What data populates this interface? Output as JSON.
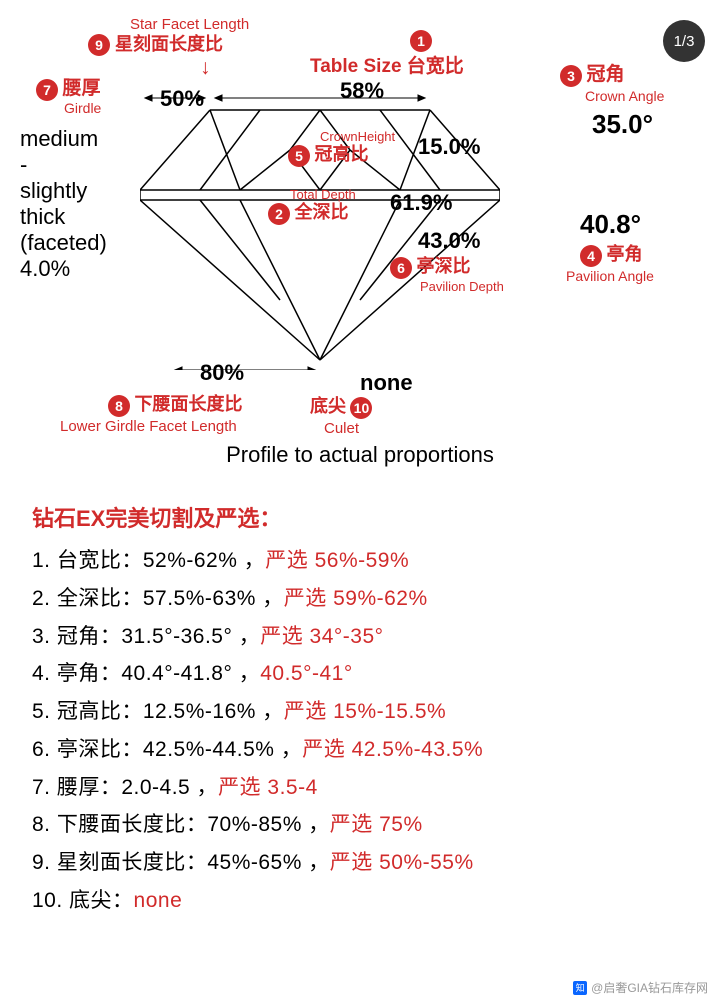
{
  "page_counter": "1/3",
  "colors": {
    "accent": "#d12b2b",
    "text": "#000000",
    "badge_bg": "#333333",
    "zhihu": "#0a66ff"
  },
  "diagram": {
    "caption": "Profile to actual proportions",
    "measurements": {
      "star_pct": "50%",
      "table_pct": "58%",
      "crown_angle": "35.0°",
      "crown_height": "15.0%",
      "total_depth": "61.9%",
      "pavilion_depth": "43.0%",
      "pavilion_angle": "40.8°",
      "lower_girdle_pct": "80%",
      "culet": "none",
      "girdle_pct": "4.0%"
    },
    "girdle_text_a": "medium",
    "girdle_text_b": "-",
    "girdle_text_c": "slightly",
    "girdle_text_d": "thick",
    "girdle_text_e": "(faceted)",
    "labels": {
      "l1": {
        "num": "1",
        "cn": "台宽比",
        "en": "Table Size"
      },
      "l2": {
        "num": "2",
        "cn": "全深比",
        "en": "Total Depth"
      },
      "l3": {
        "num": "3",
        "cn": "冠角",
        "en": "Crown Angle"
      },
      "l4": {
        "num": "4",
        "cn": "亭角",
        "en": "Pavilion Angle"
      },
      "l5": {
        "num": "5",
        "cn": "冠高比",
        "en": "CrownHeight"
      },
      "l6": {
        "num": "6",
        "cn": "亭深比",
        "en": "Pavilion Depth"
      },
      "l7": {
        "num": "7",
        "cn": "腰厚",
        "en": "Girdle"
      },
      "l8": {
        "num": "8",
        "cn": "下腰面长度比",
        "en": "Lower Girdle Facet Length"
      },
      "l9": {
        "num": "9",
        "cn": "星刻面长度比",
        "en": "Star Facet Length"
      },
      "l10": {
        "num": "10",
        "cn": "底尖",
        "en": "Culet"
      }
    }
  },
  "list": {
    "title": "钻石EX完美切割及严选：",
    "rows": [
      {
        "n": "1",
        "name": "台宽比",
        "range": "52%-62%",
        "strict_label": "严选",
        "strict": "56%-59%"
      },
      {
        "n": "2",
        "name": "全深比",
        "range": "57.5%-63%",
        "strict_label": "严选",
        "strict": "59%-62%"
      },
      {
        "n": "3",
        "name": "冠角",
        "range": "31.5°-36.5°",
        "strict_label": "严选",
        "strict": "34°-35°"
      },
      {
        "n": "4",
        "name": "亭角",
        "range": "40.4°-41.8°",
        "strict_label": "",
        "strict": "40.5°-41°"
      },
      {
        "n": "5",
        "name": "冠高比",
        "range": "12.5%-16%",
        "strict_label": "严选",
        "strict": "15%-15.5%"
      },
      {
        "n": "6",
        "name": "亭深比",
        "range": "42.5%-44.5%",
        "strict_label": "严选",
        "strict": "42.5%-43.5%"
      },
      {
        "n": "7",
        "name": "腰厚",
        "range": "2.0-4.5",
        "strict_label": "严选",
        "strict": "3.5-4"
      },
      {
        "n": "8",
        "name": "下腰面长度比",
        "range": "70%-85%",
        "strict_label": "严选",
        "strict": "75%"
      },
      {
        "n": "9",
        "name": "星刻面长度比",
        "range": "45%-65%",
        "strict_label": "严选",
        "strict": "50%-55%"
      },
      {
        "n": "10",
        "name": "底尖",
        "range": "",
        "strict_label": "",
        "strict": "none"
      }
    ]
  },
  "watermark": "@启奢GIA钻石库存网"
}
